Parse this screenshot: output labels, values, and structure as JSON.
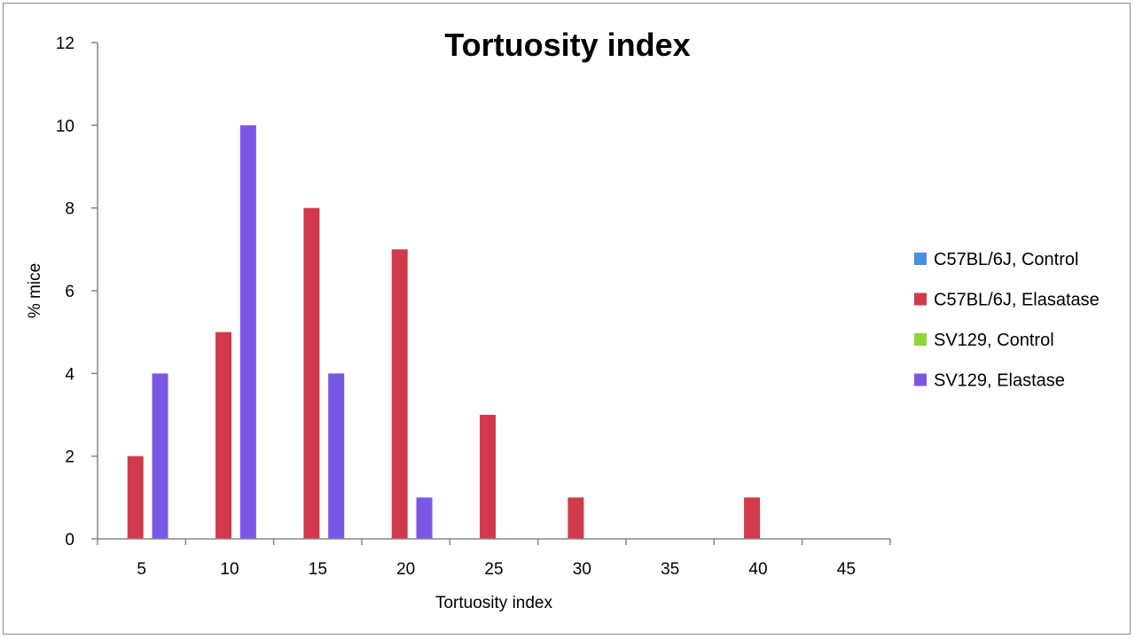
{
  "chart_data": {
    "type": "bar",
    "title": "Tortuosity index",
    "xlabel": "Tortuosity index",
    "ylabel": "% mice",
    "categories": [
      "5",
      "10",
      "15",
      "20",
      "25",
      "30",
      "35",
      "40",
      "45"
    ],
    "series": [
      {
        "name": "C57BL/6J, Control",
        "color": "#4a90e2",
        "values": [
          0,
          0,
          0,
          0,
          0,
          0,
          0,
          0,
          0
        ]
      },
      {
        "name": "C57BL/6J, Elasatase",
        "color": "#d13a4b",
        "values": [
          2,
          5,
          8,
          7,
          3,
          1,
          0,
          1,
          0
        ]
      },
      {
        "name": "SV129, Control",
        "color": "#8ed631",
        "values": [
          0,
          0,
          0,
          0,
          0,
          0,
          0,
          0,
          0
        ]
      },
      {
        "name": "SV129, Elastase",
        "color": "#7b57e6",
        "values": [
          4,
          10,
          4,
          1,
          0,
          0,
          0,
          0,
          0
        ]
      }
    ],
    "ylim": [
      0,
      12
    ],
    "yticks": [
      0,
      2,
      4,
      6,
      8,
      10,
      12
    ],
    "grid": false,
    "legend_position": "right"
  }
}
